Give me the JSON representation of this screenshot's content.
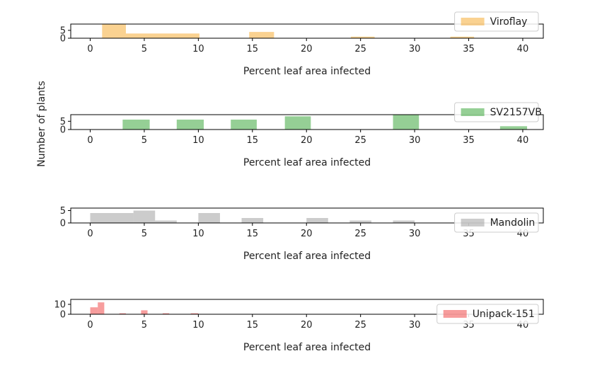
{
  "ylabel": "Number of plants",
  "chart_data": [
    {
      "type": "bar",
      "label": "Viroflay",
      "color": "#f5a623",
      "xlabel": "Percent leaf area infected",
      "xlim": [
        -1.8,
        41.9
      ],
      "xticks": [
        0,
        5,
        10,
        15,
        20,
        25,
        30,
        35,
        40
      ],
      "ylim": [
        0,
        9
      ],
      "yticks": [
        0,
        5
      ],
      "legend": "top-right",
      "bins": [
        [
          1.1,
          3.3,
          9
        ],
        [
          3.3,
          10.1,
          3
        ],
        [
          14.7,
          17.0,
          4
        ],
        [
          24.1,
          26.3,
          1
        ],
        [
          33.3,
          35.5,
          1
        ]
      ]
    },
    {
      "type": "bar",
      "label": "SV2157VB",
      "color": "#2ca02c",
      "xlabel": "Percent leaf area infected",
      "xlim": [
        -1.8,
        41.9
      ],
      "xticks": [
        0,
        5,
        10,
        15,
        20,
        25,
        30,
        35,
        40
      ],
      "ylim": [
        0,
        9
      ],
      "yticks": [
        0,
        5
      ],
      "legend": "top-right",
      "bins": [
        [
          3.0,
          5.5,
          6
        ],
        [
          8.0,
          10.5,
          6
        ],
        [
          13.0,
          15.4,
          6
        ],
        [
          18.0,
          20.4,
          8
        ],
        [
          28.0,
          30.4,
          9
        ],
        [
          37.9,
          40.4,
          2
        ]
      ]
    },
    {
      "type": "bar",
      "label": "Mandolin",
      "color": "#9a9a9a",
      "xlabel": "Percent leaf area infected",
      "xlim": [
        -1.8,
        41.9
      ],
      "xticks": [
        0,
        5,
        10,
        15,
        20,
        25,
        30,
        35,
        40
      ],
      "ylim": [
        0,
        6
      ],
      "yticks": [
        0,
        5
      ],
      "legend": "lower-right",
      "bins": [
        [
          0.0,
          4.0,
          4
        ],
        [
          4.0,
          6.0,
          5
        ],
        [
          6.0,
          8.0,
          1
        ],
        [
          10.0,
          12.0,
          4
        ],
        [
          14.0,
          16.0,
          2
        ],
        [
          20.0,
          22.0,
          2
        ],
        [
          24.0,
          26.0,
          1
        ],
        [
          28.0,
          30.0,
          1
        ]
      ]
    },
    {
      "type": "bar",
      "label": "Unipack-151",
      "color": "#ef3b3b",
      "xlabel": "Percent leaf area infected",
      "xlim": [
        -1.8,
        41.9
      ],
      "xticks": [
        0,
        5,
        10,
        15,
        20,
        25,
        30,
        35,
        40
      ],
      "ylim": [
        0,
        15
      ],
      "yticks": [
        0,
        10
      ],
      "legend": "lower-right",
      "bins": [
        [
          0.0,
          0.7,
          7
        ],
        [
          0.7,
          1.3,
          12
        ],
        [
          2.7,
          3.3,
          1
        ],
        [
          4.7,
          5.3,
          4
        ],
        [
          6.7,
          7.3,
          1
        ],
        [
          9.3,
          10.0,
          1
        ]
      ]
    }
  ]
}
